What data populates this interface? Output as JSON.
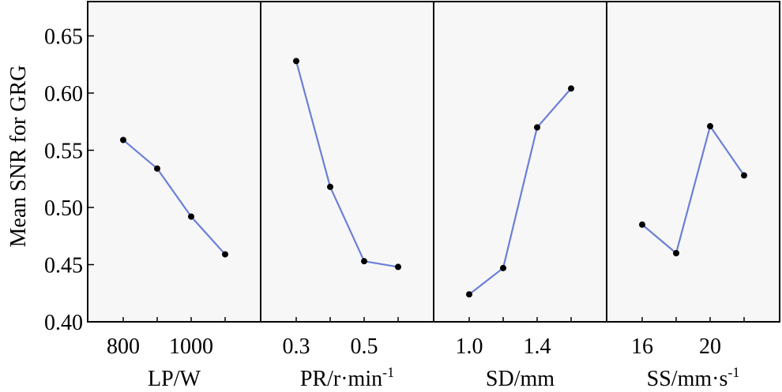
{
  "chart_data": {
    "type": "line",
    "ylabel": "Mean SNR for GRG",
    "ylim": [
      0.4,
      0.68
    ],
    "yticks": [
      0.4,
      0.45,
      0.5,
      0.55,
      0.6,
      0.65
    ],
    "ytick_labels": [
      "0.40",
      "0.45",
      "0.50",
      "0.55",
      "0.60",
      "0.65"
    ],
    "line_color": "#6b7fd7",
    "marker_color": "#000000",
    "panel_background": "#f7f7f7",
    "panels": [
      {
        "xlabel": "LP/W",
        "x": [
          800,
          900,
          1000,
          1100
        ],
        "values": [
          0.559,
          0.534,
          0.492,
          0.459
        ],
        "tick_labels": [
          "800",
          "1000"
        ],
        "tick_values": [
          800,
          1000
        ]
      },
      {
        "xlabel": "PR/r·min",
        "xlabel_sup": "-1",
        "x": [
          0.3,
          0.4,
          0.5,
          0.6
        ],
        "values": [
          0.628,
          0.518,
          0.453,
          0.448
        ],
        "tick_labels": [
          "0.3",
          "0.5"
        ],
        "tick_values": [
          0.3,
          0.5
        ]
      },
      {
        "xlabel": "SD/mm",
        "x": [
          1.0,
          1.2,
          1.4,
          1.6
        ],
        "values": [
          0.424,
          0.447,
          0.57,
          0.604
        ],
        "tick_labels": [
          "1.0",
          "1.4"
        ],
        "tick_values": [
          1.0,
          1.4
        ]
      },
      {
        "xlabel": "SS/mm·s",
        "xlabel_sup": "-1",
        "x": [
          16,
          18,
          20,
          22
        ],
        "values": [
          0.485,
          0.46,
          0.571,
          0.528
        ],
        "tick_labels": [
          "16",
          "20"
        ],
        "tick_values": [
          16,
          20
        ]
      }
    ]
  }
}
